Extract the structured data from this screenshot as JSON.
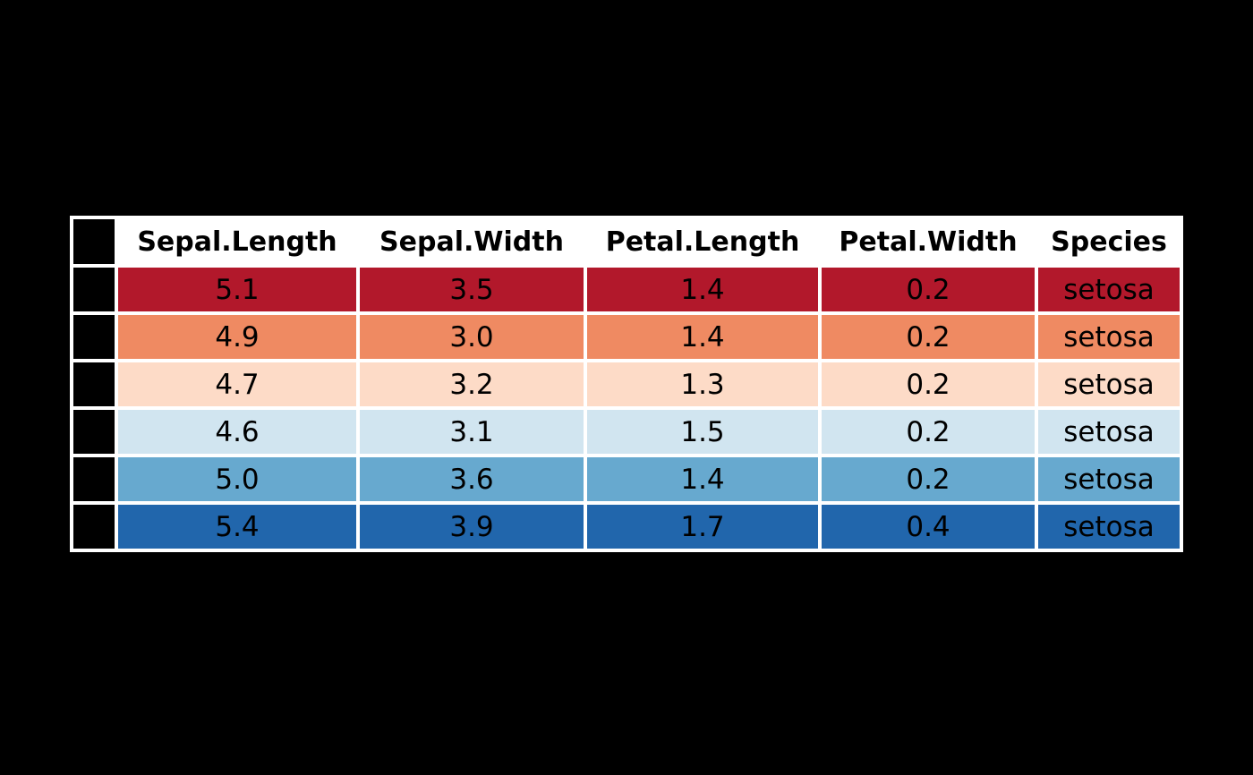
{
  "page": {
    "background": "#000000"
  },
  "chart_data": {
    "type": "table",
    "title": "",
    "columns": [
      "",
      "Sepal.Length",
      "Sepal.Width",
      "Petal.Length",
      "Petal.Width",
      "Species"
    ],
    "rows": [
      [
        "5.1",
        "3.5",
        "1.4",
        "0.2",
        "setosa"
      ],
      [
        "4.9",
        "3.0",
        "1.4",
        "0.2",
        "setosa"
      ],
      [
        "4.7",
        "3.2",
        "1.3",
        "0.2",
        "setosa"
      ],
      [
        "4.6",
        "3.1",
        "1.5",
        "0.2",
        "setosa"
      ],
      [
        "5.0",
        "3.6",
        "1.4",
        "0.2",
        "setosa"
      ],
      [
        "5.4",
        "3.9",
        "1.7",
        "0.4",
        "setosa"
      ]
    ],
    "row_colors": [
      "#b2182b",
      "#ef8a62",
      "#fddbc7",
      "#d1e5f0",
      "#67a9cf",
      "#2166ac"
    ],
    "palette_name": "RdBu",
    "header_bg": "#ffffff",
    "header_text_color": "#000000",
    "cell_text_color": "#000000",
    "row_label_bg": "#000000",
    "grid_color": "#ffffff",
    "page_bg": "#000000"
  }
}
